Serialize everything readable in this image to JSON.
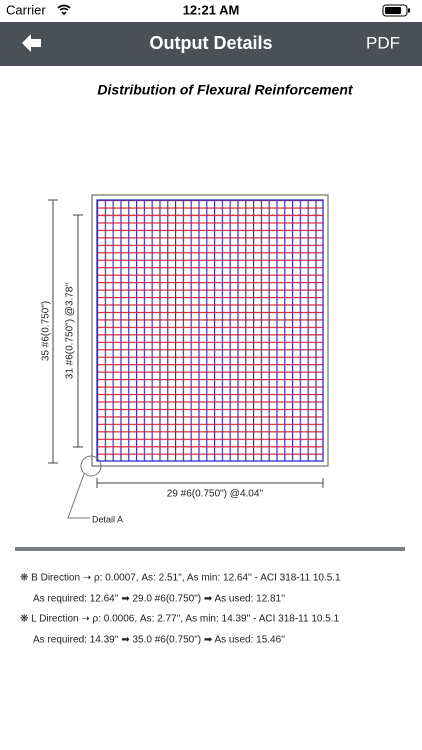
{
  "status": {
    "carrier": "Carrier",
    "time": "12:21 AM"
  },
  "nav": {
    "title": "Output Details",
    "action": "PDF"
  },
  "drawing": {
    "title": "Distribution of Flexural Reinforcement",
    "left_outer_label": "35 #6(0.750\")",
    "left_inner_label": "31 #6(0.750\") @3.78''",
    "bottom_label": "29 #6(0.750\") @4.04''",
    "detail_label": "Detail A"
  },
  "results": [
    {
      "line1": "❋ B Direction ➝ ρ: 0.0007, As: 2.51'', As min: 12.64'' - ACI 318-11 10.5.1",
      "line2": "As required: 12.64'' ➡ 29.0 #6(0.750\") ➡ As used: 12.81''"
    },
    {
      "line1": "❋ L Direction ➝ ρ: 0.0006, As: 2.77'', As min: 14.39'' - ACI 318-11 10.5.1",
      "line2": "As required: 14.39'' ➡ 35.0 #6(0.750\") ➡ As used: 15.46''"
    }
  ]
}
